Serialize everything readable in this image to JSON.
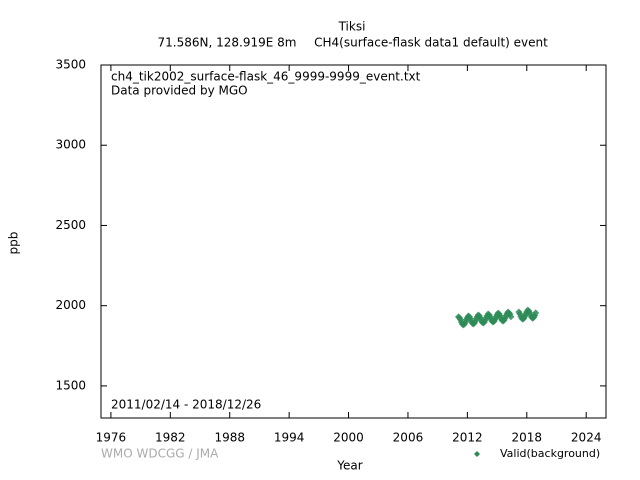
{
  "chart_data": {
    "type": "scatter",
    "title": "Tiksi",
    "subtitle": [
      "71.586N, 128.919E 8m",
      "CH4(surface-flask data1 default) event"
    ],
    "annotations": [
      "ch4_tik2002_surface-flask_46_9999-9999_event.txt",
      "Data provided by MGO",
      "2011/02/14 - 2018/12/26"
    ],
    "credit": "WMO WDCGG / JMA",
    "xlabel": "Year",
    "ylabel": "ppb",
    "xlim": [
      1975,
      2026
    ],
    "ylim": [
      1300,
      3500
    ],
    "xticks": [
      1976,
      1982,
      1988,
      1994,
      2000,
      2006,
      2012,
      2018,
      2024
    ],
    "yticks": [
      1500,
      2000,
      2500,
      3000,
      3500
    ],
    "grid": false,
    "legend": "lower right",
    "x": [
      2011.1,
      2011.2,
      2011.3,
      2011.4,
      2011.5,
      2011.6,
      2011.7,
      2011.8,
      2011.9,
      2012.0,
      2012.1,
      2012.2,
      2012.3,
      2012.4,
      2012.5,
      2012.6,
      2012.7,
      2012.8,
      2012.9,
      2013.0,
      2013.1,
      2013.2,
      2013.3,
      2013.4,
      2013.5,
      2013.6,
      2013.7,
      2013.8,
      2013.9,
      2014.0,
      2014.1,
      2014.2,
      2014.3,
      2014.4,
      2014.5,
      2014.6,
      2014.7,
      2014.8,
      2014.9,
      2015.0,
      2015.1,
      2015.2,
      2015.3,
      2015.4,
      2015.5,
      2015.6,
      2015.7,
      2015.8,
      2015.9,
      2016.0,
      2016.1,
      2016.2,
      2016.3,
      2016.4,
      2017.2,
      2017.3,
      2017.4,
      2017.5,
      2017.6,
      2017.7,
      2017.8,
      2017.9,
      2018.0,
      2018.1,
      2018.2,
      2018.3,
      2018.4,
      2018.5,
      2018.6,
      2018.7,
      2018.8,
      2018.9
    ],
    "series": [
      {
        "name": "Valid(background)",
        "color": "#2e8b57",
        "values": [
          1930,
          1925,
          1913,
          1897,
          1885,
          1880,
          1885,
          1897,
          1913,
          1925,
          1936,
          1931,
          1919,
          1903,
          1891,
          1886,
          1891,
          1903,
          1919,
          1931,
          1942,
          1937,
          1925,
          1909,
          1897,
          1892,
          1897,
          1909,
          1925,
          1937,
          1948,
          1943,
          1931,
          1915,
          1903,
          1898,
          1903,
          1915,
          1931,
          1943,
          1954,
          1949,
          1937,
          1921,
          1909,
          1904,
          1909,
          1921,
          1937,
          1949,
          1960,
          1955,
          1947,
          1931,
          1961,
          1949,
          1933,
          1921,
          1916,
          1921,
          1933,
          1949,
          1961,
          1972,
          1967,
          1955,
          1939,
          1927,
          1922,
          1927,
          1939,
          1955
        ]
      }
    ]
  }
}
